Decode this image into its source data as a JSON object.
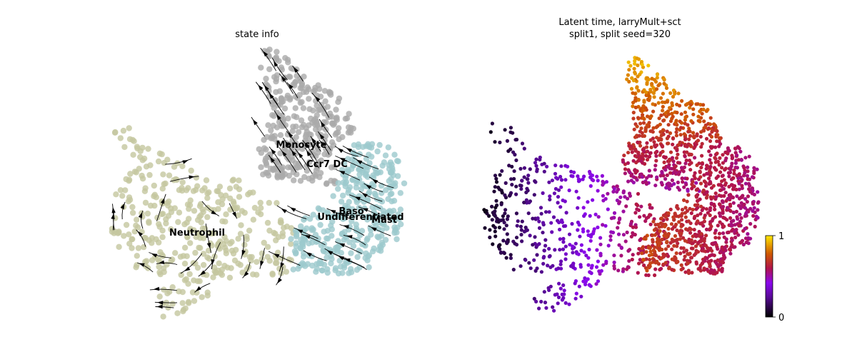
{
  "chart_data": [
    {
      "type": "scatter",
      "title": "state info",
      "legend": "on data",
      "grid": false,
      "axes": "off",
      "series": [
        {
          "name": "Neutrophil",
          "color": "#c4c79f"
        },
        {
          "name": "Monocyte",
          "color": "#aaaaaa"
        },
        {
          "name": "Ccr7 DC",
          "color": "#aaaaaa"
        },
        {
          "name": "Baso",
          "color": "#9cc9cd"
        },
        {
          "name": "Mast",
          "color": "#9cc9cd"
        },
        {
          "name": "Undifferentiated",
          "color": "#9cc9cd"
        }
      ],
      "overlay": "velocity streamlines with arrows"
    },
    {
      "type": "scatter",
      "title": "Latent time, larryMult+sct\nsplit1, split seed=320",
      "grid": false,
      "axes": "off",
      "colorbar": {
        "cmap": "gnuplot",
        "range": [
          0,
          1
        ],
        "ticks": [
          "0",
          "1"
        ]
      }
    }
  ]
}
